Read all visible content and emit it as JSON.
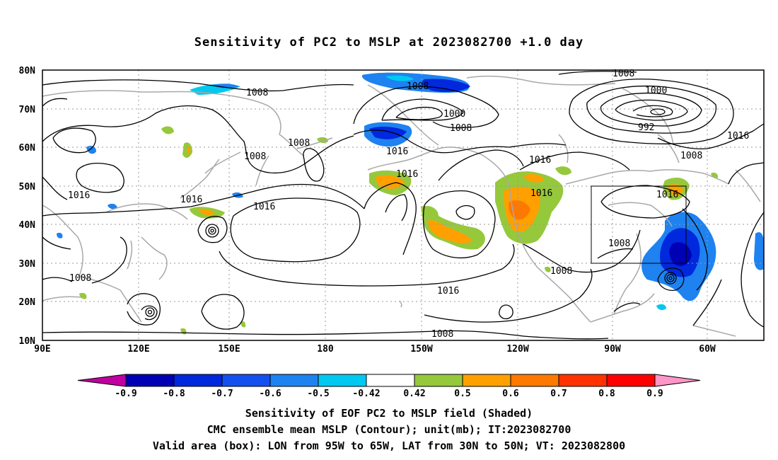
{
  "title": "Sensitivity of PC2 to MSLP at 2023082700 +1.0 day",
  "map": {
    "lat_labels": [
      "80N",
      "70N",
      "60N",
      "50N",
      "40N",
      "30N",
      "20N",
      "10N"
    ],
    "lon_labels": [
      "90E",
      "120E",
      "150E",
      "180",
      "150W",
      "120W",
      "90W",
      "60W"
    ],
    "contour_labels": [
      "1008",
      "1008",
      "1008",
      "1008",
      "1008",
      "1008",
      "1008",
      "1008",
      "1008",
      "1008",
      "1000",
      "1000",
      "992",
      "1016",
      "1016",
      "1016",
      "1016",
      "1016",
      "1016",
      "1016",
      "1016",
      "1008",
      "1016"
    ],
    "valid_area_box": {
      "lon": [
        "95W",
        "65W"
      ],
      "lat": [
        "30N",
        "50N"
      ]
    }
  },
  "colorbar": {
    "labels": [
      "-0.9",
      "-0.8",
      "-0.7",
      "-0.6",
      "-0.5",
      "-0.42",
      "0.42",
      "0.5",
      "0.6",
      "0.7",
      "0.8",
      "0.9"
    ],
    "colors": [
      "#c000a0",
      "#0000b4",
      "#0028dc",
      "#1450f0",
      "#1e82f0",
      "#00c8f0",
      "#ffffff",
      "#96c83c",
      "#ffa000",
      "#ff7800",
      "#ff3200",
      "#ff0000",
      "#ff96c8"
    ]
  },
  "footer": {
    "line1": "Sensitivity of EOF PC2 to MSLP field (Shaded)",
    "line2": "CMC ensemble mean MSLP (Contour); unit(mb); IT:2023082700",
    "line3": "Valid area (box): LON from 95W to 65W, LAT from 30N to 50N; VT: 2023082800"
  }
}
